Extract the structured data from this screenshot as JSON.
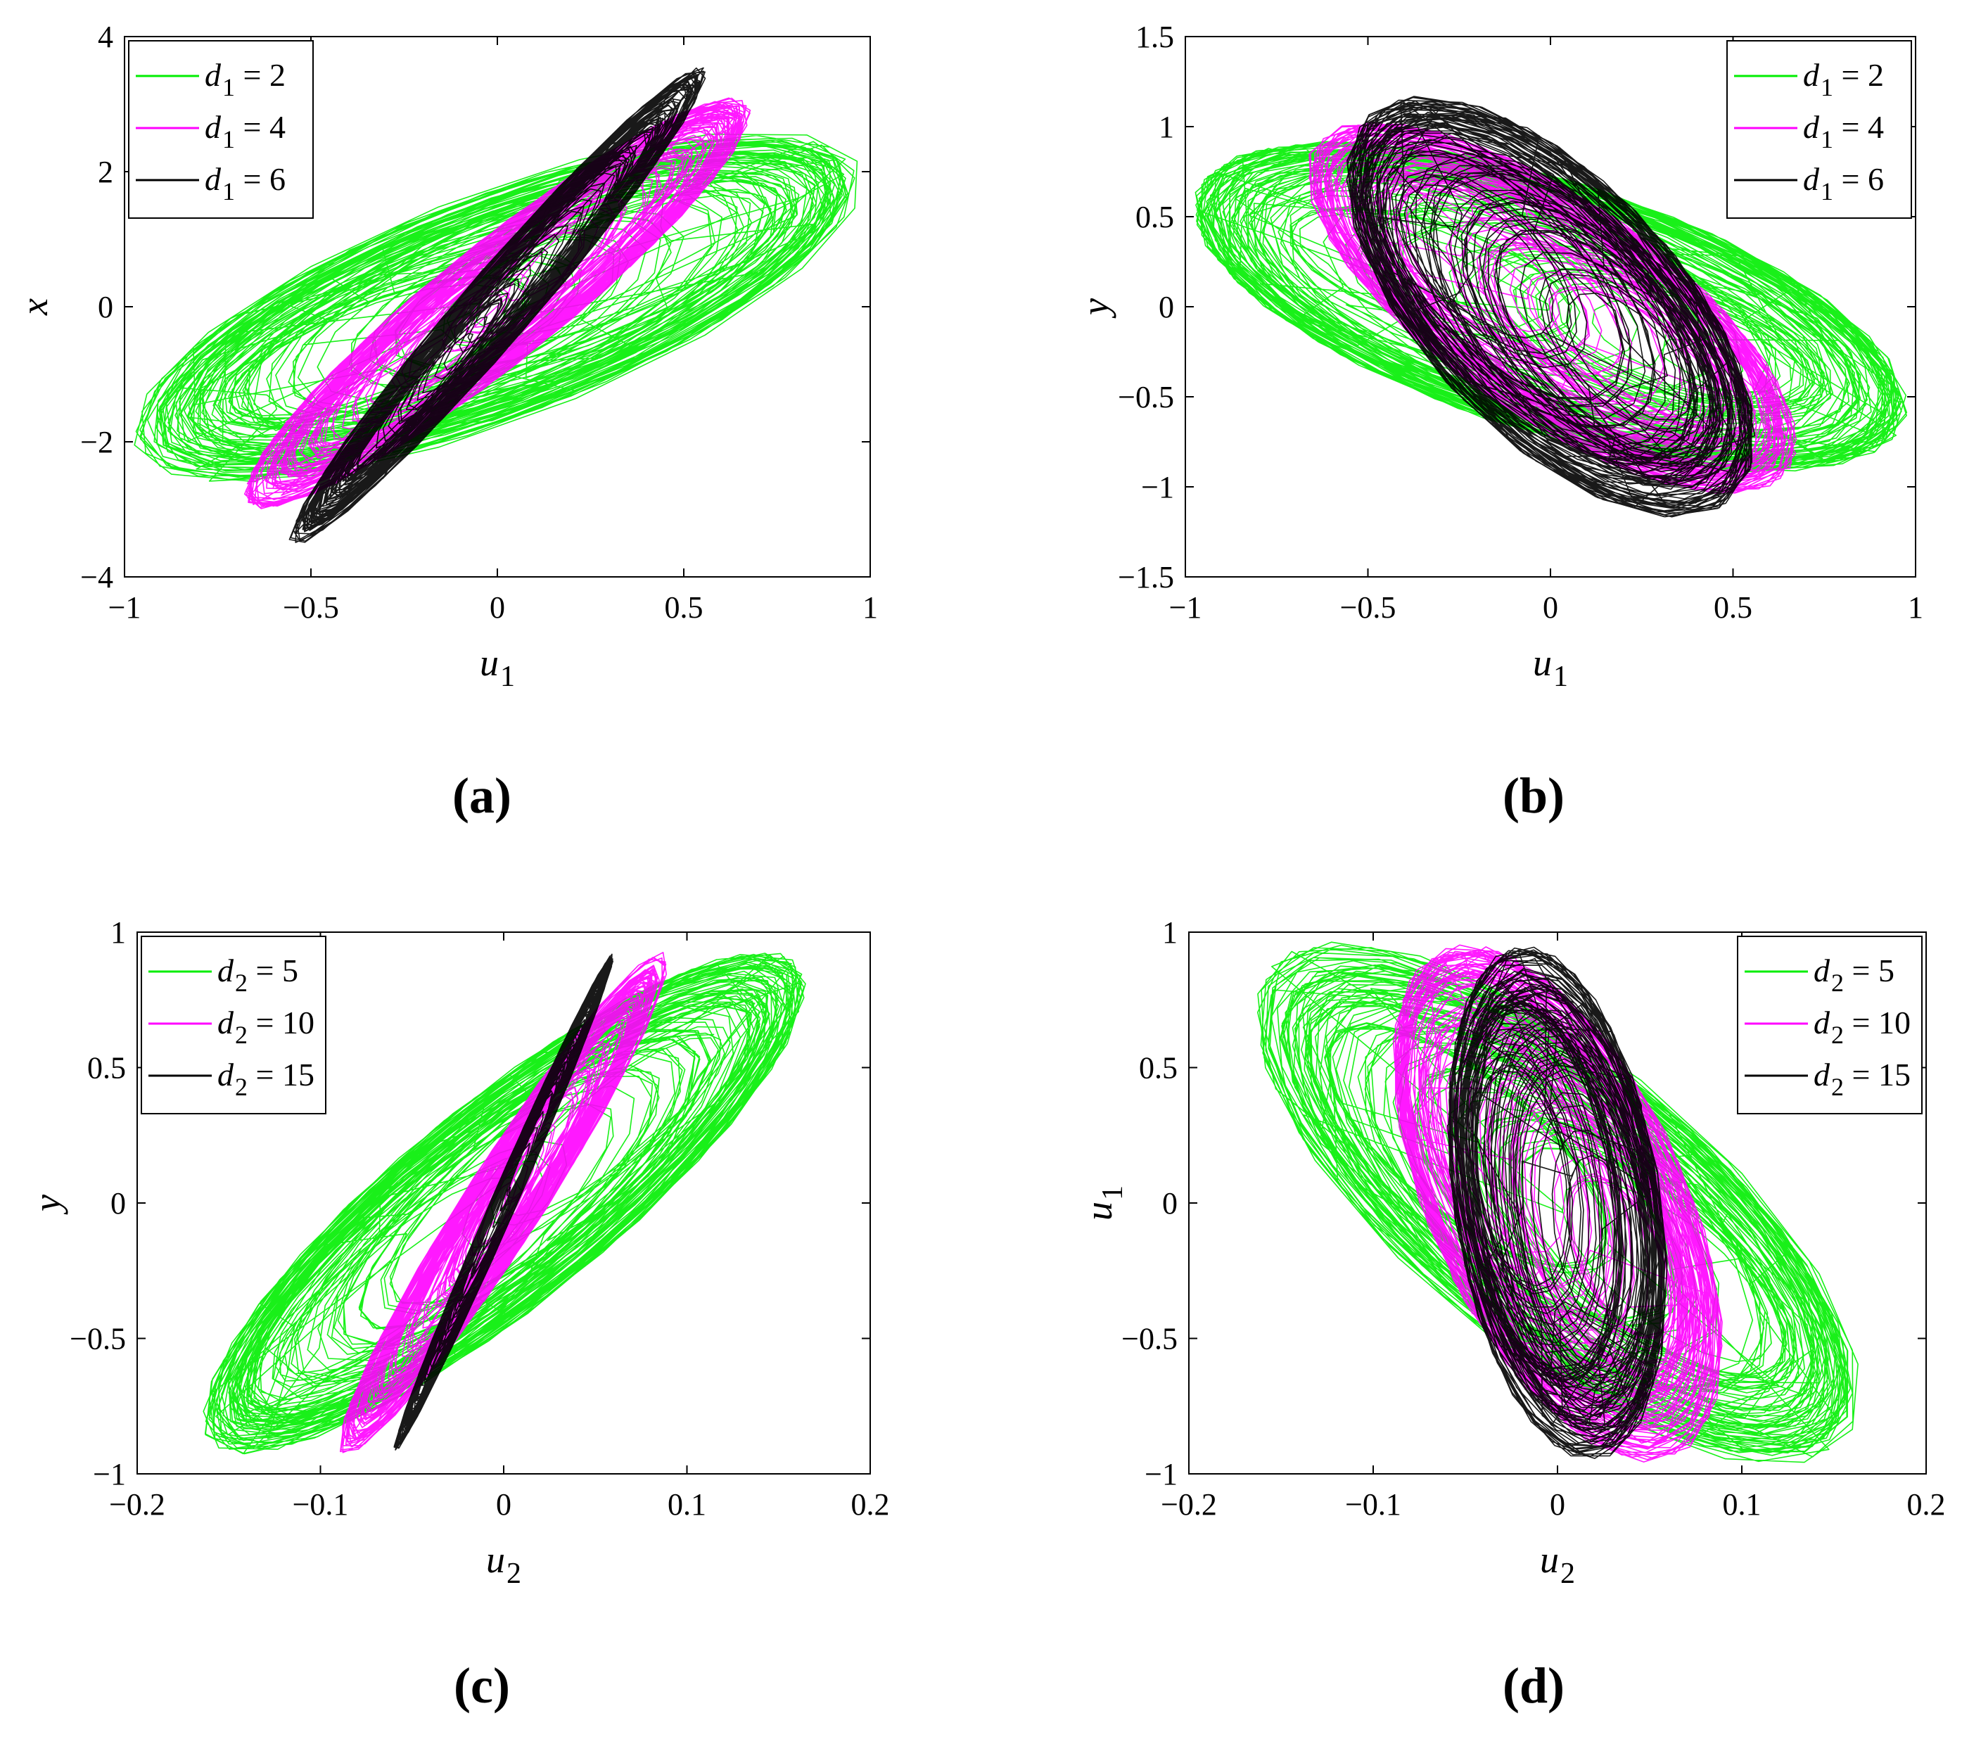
{
  "colors": {
    "green": "#00ee00",
    "magenta": "#ff00ff",
    "black": "#000000",
    "axis": "#000000"
  },
  "chart_data": [
    {
      "panel": "a",
      "caption": "(a)",
      "type": "line",
      "xlabel": "u",
      "xlabel_sub": "1",
      "ylabel": "x",
      "ylabel_sub": "",
      "xlim": [
        -1,
        1
      ],
      "ylim": [
        -4,
        4
      ],
      "xticks": [
        -1,
        -0.5,
        0,
        0.5,
        1
      ],
      "xtick_labels": [
        "−1",
        "−0.5",
        "0",
        "0.5",
        "1"
      ],
      "yticks": [
        -4,
        -2,
        0,
        2,
        4
      ],
      "ytick_labels": [
        "−4",
        "−2",
        "0",
        "2",
        "4"
      ],
      "legend_position": "top-left",
      "series": [
        {
          "name": "d",
          "name_sub": "1",
          "name_value": " = 2",
          "color": "#00ee00",
          "trajectory": {
            "extent_u": [
              -0.98,
              0.98
            ],
            "extent_v": [
              -2.6,
              2.6
            ],
            "corr": 0.72
          }
        },
        {
          "name": "d",
          "name_sub": "1",
          "name_value": " = 4",
          "color": "#ff00ff",
          "trajectory": {
            "extent_u": [
              -0.68,
              0.68
            ],
            "extent_v": [
              -3.0,
              3.1
            ],
            "corr": 0.93
          }
        },
        {
          "name": "d",
          "name_sub": "1",
          "name_value": " = 6",
          "color": "#000000",
          "trajectory": {
            "extent_u": [
              -0.56,
              0.56
            ],
            "extent_v": [
              -3.55,
              3.55
            ],
            "corr": 0.975
          }
        }
      ]
    },
    {
      "panel": "b",
      "caption": "(b)",
      "type": "line",
      "xlabel": "u",
      "xlabel_sub": "1",
      "ylabel": "y",
      "ylabel_sub": "",
      "xlim": [
        -1,
        1
      ],
      "ylim": [
        -1.5,
        1.5
      ],
      "xticks": [
        -1,
        -0.5,
        0,
        0.5,
        1
      ],
      "xtick_labels": [
        "−1",
        "−0.5",
        "0",
        "0.5",
        "1"
      ],
      "yticks": [
        -1.5,
        -1,
        -0.5,
        0,
        0.5,
        1,
        1.5
      ],
      "ytick_labels": [
        "−1.5",
        "−1",
        "−0.5",
        "0",
        "0.5",
        "1",
        "1.5"
      ],
      "legend_position": "top-right",
      "series": [
        {
          "name": "d",
          "name_sub": "1",
          "name_value": " = 2",
          "color": "#00ee00",
          "trajectory": {
            "extent_u": [
              -0.98,
              0.98
            ],
            "extent_v": [
              -0.92,
              0.92
            ],
            "corr": -0.6
          }
        },
        {
          "name": "d",
          "name_sub": "1",
          "name_value": " = 4",
          "color": "#ff00ff",
          "trajectory": {
            "extent_u": [
              -0.68,
              0.68
            ],
            "extent_v": [
              -1.05,
              1.05
            ],
            "corr": -0.72
          }
        },
        {
          "name": "d",
          "name_sub": "1",
          "name_value": " = 6",
          "color": "#000000",
          "trajectory": {
            "extent_u": [
              -0.56,
              0.56
            ],
            "extent_v": [
              -1.17,
              1.17
            ],
            "corr": -0.62
          }
        }
      ]
    },
    {
      "panel": "c",
      "caption": "(c)",
      "type": "line",
      "xlabel": "u",
      "xlabel_sub": "2",
      "ylabel": "y",
      "ylabel_sub": "",
      "xlim": [
        -0.2,
        0.2
      ],
      "ylim": [
        -1,
        1
      ],
      "xticks": [
        -0.2,
        -0.1,
        0,
        0.1,
        0.2
      ],
      "xtick_labels": [
        "−0.2",
        "−0.1",
        "0",
        "0.1",
        "0.2"
      ],
      "yticks": [
        -1,
        -0.5,
        0,
        0.5,
        1
      ],
      "ytick_labels": [
        "−1",
        "−0.5",
        "0",
        "0.5",
        "1"
      ],
      "legend_position": "top-left",
      "series": [
        {
          "name": "d",
          "name_sub": "2",
          "name_value": " = 5",
          "color": "#00ee00",
          "trajectory": {
            "extent_u": [
              -0.165,
              0.165
            ],
            "extent_v": [
              -0.93,
              0.93
            ],
            "corr": 0.86
          }
        },
        {
          "name": "d",
          "name_sub": "2",
          "name_value": " = 10",
          "color": "#ff00ff",
          "trajectory": {
            "extent_u": [
              -0.09,
              0.09
            ],
            "extent_v": [
              -0.93,
              0.93
            ],
            "corr": 0.96
          }
        },
        {
          "name": "d",
          "name_sub": "2",
          "name_value": " = 15",
          "color": "#000000",
          "trajectory": {
            "extent_u": [
              -0.06,
              0.06
            ],
            "extent_v": [
              -0.92,
              0.92
            ],
            "corr": 0.992
          }
        }
      ]
    },
    {
      "panel": "d",
      "caption": "(d)",
      "type": "line",
      "xlabel": "u",
      "xlabel_sub": "2",
      "ylabel": "u",
      "ylabel_sub": "1",
      "xlim": [
        -0.2,
        0.2
      ],
      "ylim": [
        -1,
        1
      ],
      "xticks": [
        -0.2,
        -0.1,
        0,
        0.1,
        0.2
      ],
      "xtick_labels": [
        "−0.2",
        "−0.1",
        "0",
        "0.1",
        "0.2"
      ],
      "yticks": [
        -1,
        -0.5,
        0,
        0.5,
        1
      ],
      "ytick_labels": [
        "−1",
        "−0.5",
        "0",
        "0.5",
        "1"
      ],
      "legend_position": "top-right",
      "series": [
        {
          "name": "d",
          "name_sub": "2",
          "name_value": " = 5",
          "color": "#00ee00",
          "trajectory": {
            "extent_u": [
              -0.165,
              0.165
            ],
            "extent_v": [
              -0.97,
              0.97
            ],
            "corr": -0.72
          }
        },
        {
          "name": "d",
          "name_sub": "2",
          "name_value": " = 10",
          "color": "#ff00ff",
          "trajectory": {
            "extent_u": [
              -0.09,
              0.09
            ],
            "extent_v": [
              -0.96,
              0.96
            ],
            "corr": -0.55
          }
        },
        {
          "name": "d",
          "name_sub": "2",
          "name_value": " = 15",
          "color": "#000000",
          "trajectory": {
            "extent_u": [
              -0.06,
              0.06
            ],
            "extent_v": [
              -0.96,
              0.96
            ],
            "corr": -0.3
          }
        }
      ]
    }
  ]
}
